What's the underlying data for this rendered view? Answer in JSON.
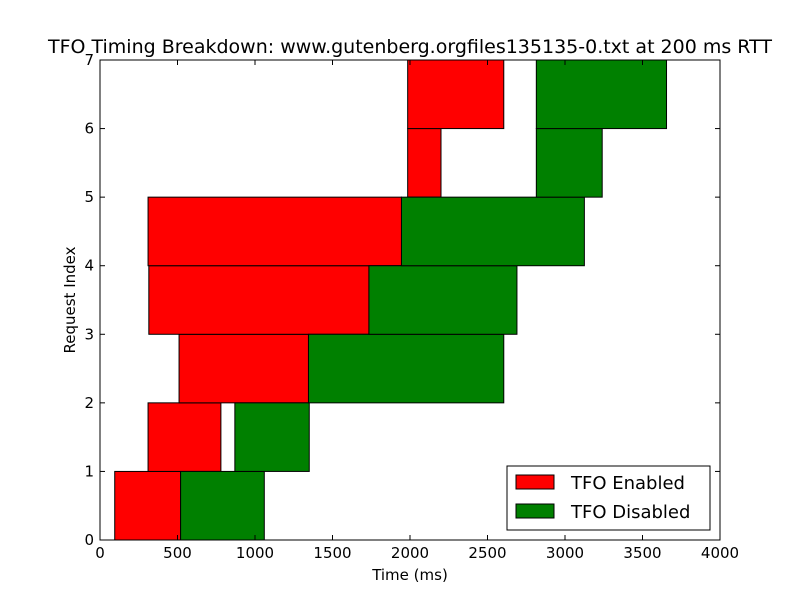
{
  "chart_data": {
    "type": "bar",
    "orientation": "horizontal-timeline",
    "title": "TFO Timing Breakdown: www.gutenberg.orgfiles135135-0.txt at 200 ms RTT",
    "xlabel": "Time (ms)",
    "ylabel": "Request Index",
    "xlim": [
      0,
      4000
    ],
    "ylim": [
      0,
      7
    ],
    "xticks": [
      "0",
      "500",
      "1000",
      "1500",
      "2000",
      "2500",
      "3000",
      "3500",
      "4000"
    ],
    "yticks": [
      "0",
      "1",
      "2",
      "3",
      "4",
      "5",
      "6",
      "7"
    ],
    "legend_position": "lower-right",
    "grid": false,
    "series": [
      {
        "name": "TFO Enabled",
        "color": "#ff0000",
        "segments": [
          {
            "index": 0,
            "start": 95,
            "end": 520
          },
          {
            "index": 1,
            "start": 310,
            "end": 780
          },
          {
            "index": 2,
            "start": 510,
            "end": 1345
          },
          {
            "index": 3,
            "start": 315,
            "end": 1735
          },
          {
            "index": 4,
            "start": 310,
            "end": 1945
          },
          {
            "index": 5,
            "start": 1985,
            "end": 2200
          },
          {
            "index": 6,
            "start": 1985,
            "end": 2605
          }
        ]
      },
      {
        "name": "TFO Disabled",
        "color": "#008000",
        "segments": [
          {
            "index": 0,
            "start": 520,
            "end": 1060
          },
          {
            "index": 1,
            "start": 870,
            "end": 1350
          },
          {
            "index": 2,
            "start": 1345,
            "end": 2605
          },
          {
            "index": 3,
            "start": 1735,
            "end": 2690
          },
          {
            "index": 4,
            "start": 1945,
            "end": 3125
          },
          {
            "index": 5,
            "start": 2815,
            "end": 3240
          },
          {
            "index": 6,
            "start": 2815,
            "end": 3655
          }
        ]
      }
    ]
  }
}
